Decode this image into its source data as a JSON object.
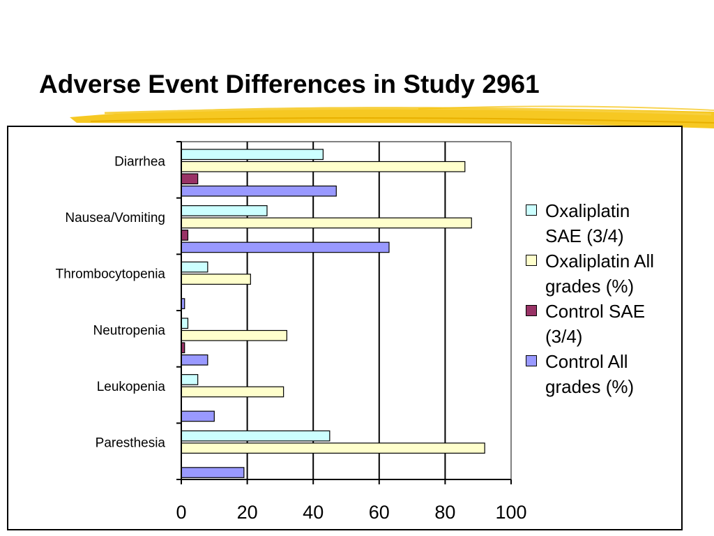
{
  "slide": {
    "title": "Adverse Event Differences in Study 2961"
  },
  "colors": {
    "highlight": "#f5c20a",
    "oxaliplatin_sae": "#ccffff",
    "oxaliplatin_all": "#ffffcc",
    "control_sae": "#993366",
    "control_all": "#9999ff"
  },
  "chart_data": {
    "type": "bar",
    "orientation": "horizontal",
    "categories": [
      "Diarrhea",
      "Nausea/Vomiting",
      "Thrombocytopenia",
      "Neutropenia",
      "Leukopenia",
      "Paresthesia"
    ],
    "series": [
      {
        "name": "Oxaliplatin SAE (3/4)",
        "color": "#ccffff",
        "values": [
          43,
          26,
          8,
          2,
          5,
          45
        ]
      },
      {
        "name": "Oxaliplatin All grades (%)",
        "color": "#ffffcc",
        "values": [
          86,
          88,
          21,
          32,
          31,
          92
        ]
      },
      {
        "name": "Control SAE (3/4)",
        "color": "#993366",
        "values": [
          5,
          2,
          0,
          1,
          0,
          0
        ]
      },
      {
        "name": "Control All grades (%)",
        "color": "#9999ff",
        "values": [
          47,
          63,
          1,
          8,
          10,
          19
        ]
      }
    ],
    "x_ticks": [
      "0",
      "20",
      "40",
      "60",
      "80",
      "100"
    ],
    "xlim": [
      0,
      100
    ],
    "grid": true,
    "legend_position": "right",
    "legend": [
      {
        "line1": "Oxaliplatin",
        "line2": "SAE (3/4)"
      },
      {
        "line1": "Oxaliplatin All",
        "line2": "grades (%)"
      },
      {
        "line1": "Control SAE",
        "line2": "(3/4)"
      },
      {
        "line1": "Control All",
        "line2": "grades (%)"
      }
    ]
  }
}
